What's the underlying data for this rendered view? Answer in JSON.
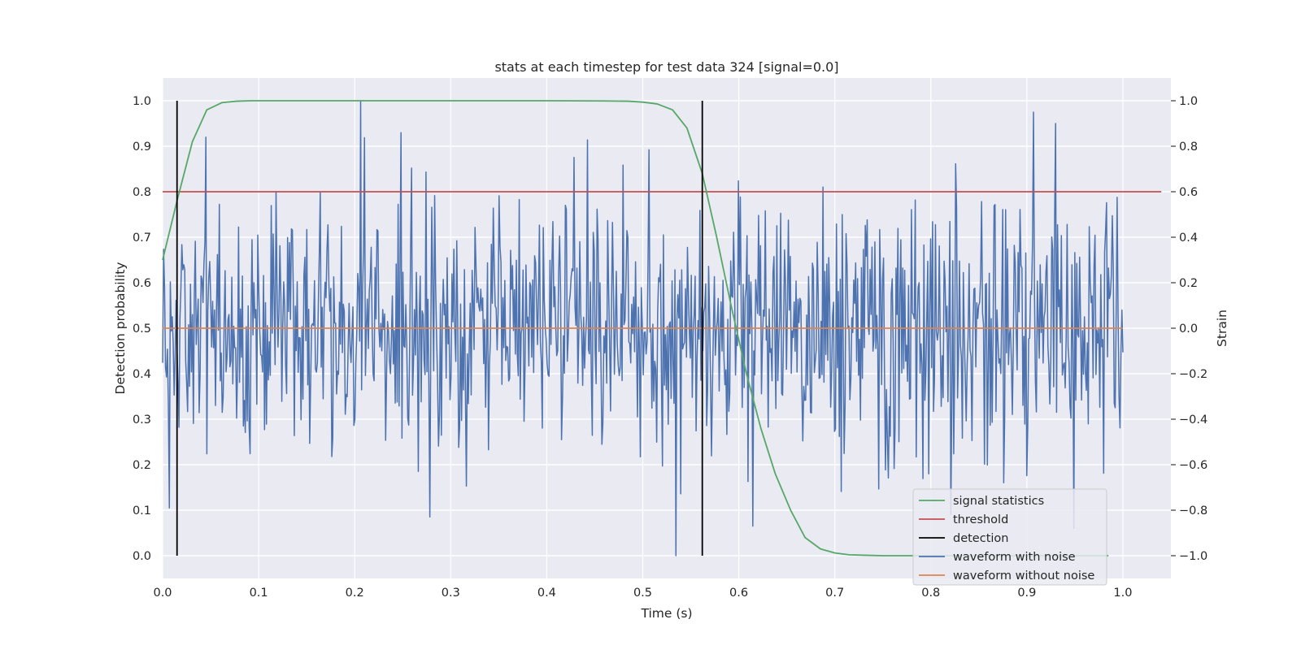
{
  "chart_data": {
    "type": "line",
    "title": "stats at each timestep for test data 324 [signal=0.0]",
    "xlabel": "Time (s)",
    "ylabel_left": "Detection probability",
    "ylabel_right": "Strain",
    "xlim": [
      0.0,
      1.05
    ],
    "ylim_left": [
      -0.05,
      1.05
    ],
    "ylim_right": [
      -1.1,
      1.1
    ],
    "x_ticks": [
      "0.0",
      "0.1",
      "0.2",
      "0.3",
      "0.4",
      "0.5",
      "0.6",
      "0.7",
      "0.8",
      "0.9",
      "1.0"
    ],
    "y_left_ticks": [
      "0.0",
      "0.1",
      "0.2",
      "0.3",
      "0.4",
      "0.5",
      "0.6",
      "0.7",
      "0.8",
      "0.9",
      "1.0"
    ],
    "y_right_ticks": [
      "−1.0",
      "−0.8",
      "−0.6",
      "−0.4",
      "−0.2",
      "0.0",
      "0.2",
      "0.4",
      "0.6",
      "0.8",
      "1.0"
    ],
    "grid": true,
    "legend_position": "lower-right",
    "colors": {
      "background": "#eaeaf2",
      "grid": "#ffffff",
      "signal_statistics": "#55a868",
      "threshold": "#c44e52",
      "detection": "#000000",
      "waveform_with_noise": "#4c72b0",
      "waveform_without_noise": "#dd8452"
    },
    "legend": [
      {
        "label": "signal statistics",
        "color": "#55a868"
      },
      {
        "label": "threshold",
        "color": "#c44e52"
      },
      {
        "label": "detection",
        "color": "#000000"
      },
      {
        "label": "waveform with noise",
        "color": "#4c72b0"
      },
      {
        "label": "waveform without noise",
        "color": "#dd8452"
      }
    ],
    "signal_statistics": {
      "x": [
        0.0,
        0.015,
        0.031,
        0.046,
        0.062,
        0.077,
        0.092,
        0.108,
        0.123,
        0.2,
        0.3,
        0.4,
        0.46,
        0.485,
        0.5,
        0.515,
        0.531,
        0.546,
        0.562,
        0.577,
        0.592,
        0.608,
        0.623,
        0.638,
        0.654,
        0.669,
        0.685,
        0.7,
        0.715,
        0.731,
        0.75,
        0.8,
        0.9,
        0.985
      ],
      "y": [
        0.65,
        0.78,
        0.91,
        0.98,
        0.996,
        0.999,
        1.0,
        1.0,
        1.0,
        1.0,
        1.0,
        1.0,
        0.9995,
        0.999,
        0.997,
        0.993,
        0.98,
        0.94,
        0.84,
        0.7,
        0.55,
        0.4,
        0.28,
        0.18,
        0.1,
        0.04,
        0.015,
        0.006,
        0.002,
        0.001,
        0.0,
        0.0,
        0.0,
        0.0
      ]
    },
    "threshold": {
      "value": 0.8,
      "x": [
        0.0,
        1.04
      ]
    },
    "detection": {
      "x": [
        0.015,
        0.562
      ],
      "y_range": [
        0.0,
        1.0
      ]
    },
    "waveform_with_noise": {
      "x_range": [
        0.0,
        1.0
      ],
      "samples": 1000,
      "distribution": "gaussian noise",
      "std_estimate": 0.28,
      "notable_peaks": [
        {
          "x": 0.007,
          "y": -0.79
        },
        {
          "x": 0.206,
          "y": 1.0
        },
        {
          "x": 0.248,
          "y": 0.86
        },
        {
          "x": 0.278,
          "y": -0.83
        },
        {
          "x": 0.535,
          "y": -1.0
        },
        {
          "x": 0.615,
          "y": -0.87
        },
        {
          "x": 0.907,
          "y": 0.95
        },
        {
          "x": 0.93,
          "y": 0.9
        }
      ]
    },
    "waveform_without_noise": {
      "x": [
        0.0,
        1.0
      ],
      "y": [
        0.0,
        0.0
      ]
    }
  }
}
